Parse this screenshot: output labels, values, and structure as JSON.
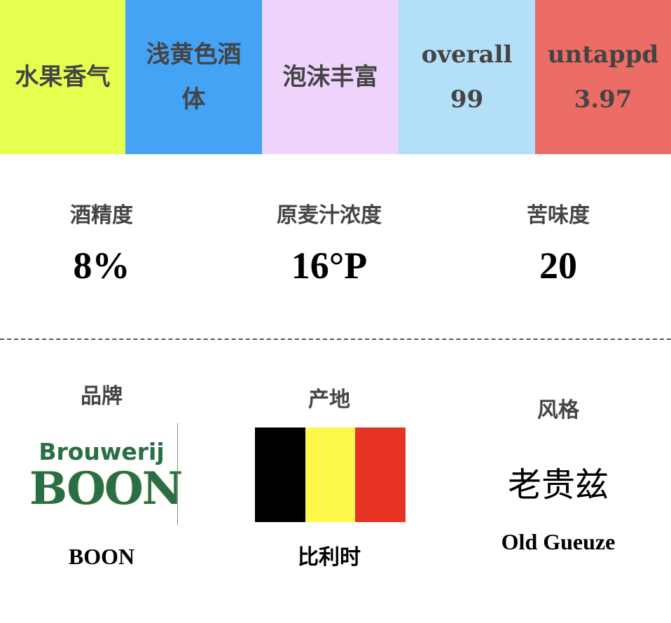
{
  "tags": [
    {
      "text": "水果香气",
      "color": "#e6ff4f"
    },
    {
      "text": "浅黄色酒体",
      "color": "#45a3f5"
    },
    {
      "text": "泡沫丰富",
      "color": "#efd3fb"
    }
  ],
  "scores": [
    {
      "label": "overall",
      "value": "99",
      "color": "#b3dff8"
    },
    {
      "label": "untappd",
      "value": "3.97",
      "color": "#ec6c66"
    }
  ],
  "stats": [
    {
      "label": "酒精度",
      "value": "8%"
    },
    {
      "label": "原麦汁浓度",
      "value": "16°P"
    },
    {
      "label": "苦味度",
      "value": "20"
    }
  ],
  "brand": {
    "label": "品牌",
    "logo_text_top": "Brouwerij",
    "logo_text_main": "BOON",
    "name": "BOON"
  },
  "origin": {
    "label": "产地",
    "name": "比利时",
    "flag_colors": [
      "#000000",
      "#fdf94a",
      "#e63323"
    ]
  },
  "style": {
    "label": "风格",
    "cn": "老贵兹",
    "name": "Old Gueuze"
  }
}
